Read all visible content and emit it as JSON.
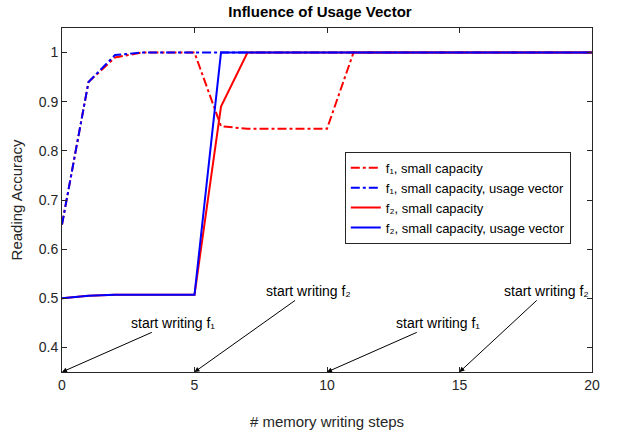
{
  "chart_data": {
    "type": "line",
    "title": "Influence of Usage Vector",
    "x_label": "# memory writing steps",
    "y_label": "Reading Accuracy",
    "x": [
      0,
      1,
      2,
      3,
      4,
      5,
      6,
      7,
      8,
      9,
      10,
      11,
      12,
      13,
      14,
      15,
      16,
      17,
      18,
      19,
      20
    ],
    "series": [
      {
        "name": "f₁, small capacity",
        "color": "#ff0000",
        "line_style": "dashdot",
        "values": [
          0.65,
          0.94,
          0.99,
          1,
          1,
          1,
          0.85,
          0.845,
          0.845,
          0.845,
          0.845,
          1,
          1,
          1,
          1,
          1,
          1,
          1,
          1,
          1,
          1
        ]
      },
      {
        "name": "f₁, small capacity, usage vector",
        "color": "#0000ff",
        "line_style": "dashdot",
        "values": [
          0.65,
          0.94,
          0.995,
          1,
          1,
          1,
          1,
          1,
          1,
          1,
          1,
          1,
          1,
          1,
          1,
          1,
          1,
          1,
          1,
          1,
          1
        ]
      },
      {
        "name": "f₂, small capacity",
        "color": "#ff0000",
        "line_style": "solid",
        "values": [
          0.5,
          0.505,
          0.507,
          0.507,
          0.507,
          0.507,
          0.89,
          1,
          1,
          1,
          1,
          1,
          1,
          1,
          1,
          1,
          1,
          1,
          1,
          1,
          1
        ]
      },
      {
        "name": "f₂, small capacity, usage vector",
        "color": "#0000ff",
        "line_style": "solid",
        "values": [
          0.5,
          0.505,
          0.507,
          0.507,
          0.507,
          0.507,
          1,
          1,
          1,
          1,
          1,
          1,
          1,
          1,
          1,
          1,
          1,
          1,
          1,
          1,
          1
        ]
      }
    ],
    "xlim": [
      0,
      20
    ],
    "xticks": [
      0,
      5,
      10,
      15,
      20
    ],
    "ylim": [
      0.35,
      1.05
    ],
    "yticks": [
      0.4,
      0.5,
      0.6,
      0.7,
      0.8,
      0.9,
      1
    ],
    "grid": false,
    "legend": "right",
    "annotations": [
      {
        "text": "start writing f₁",
        "x": 0,
        "y": 0.35,
        "text_x": 4.2,
        "text_y": 0.45
      },
      {
        "text": "start writing f₂",
        "x": 5,
        "y": 0.35,
        "text_x": 9.3,
        "text_y": 0.515
      },
      {
        "text": "start writing f₁",
        "x": 10,
        "y": 0.35,
        "text_x": 14.2,
        "text_y": 0.45
      },
      {
        "text": "start writing f₂",
        "x": 15,
        "y": 0.35,
        "text_x": 18.3,
        "text_y": 0.515
      }
    ]
  }
}
